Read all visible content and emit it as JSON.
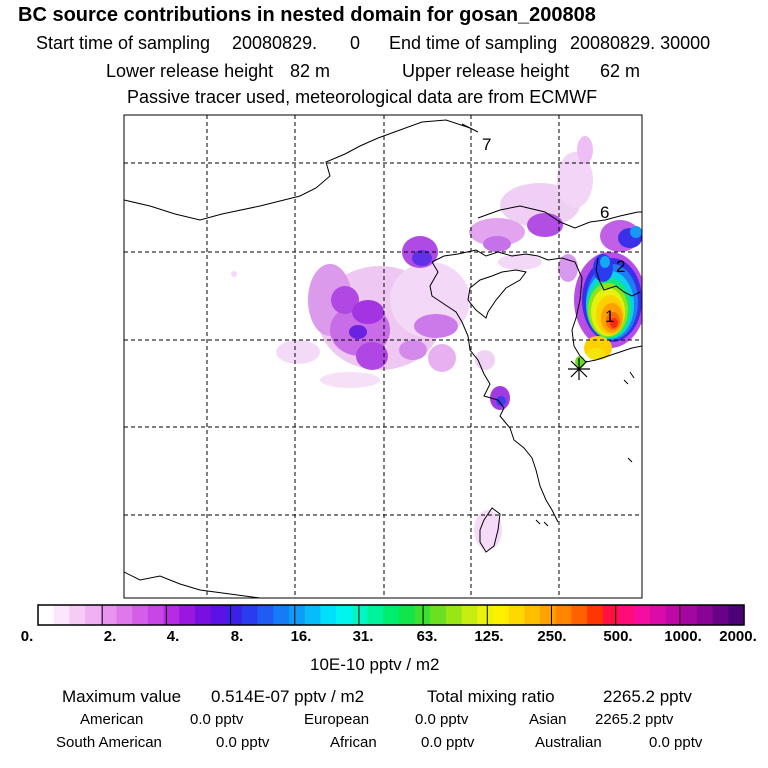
{
  "header": {
    "title": "BC  source contributions in nested domain for gosan_200808",
    "start_label": "Start time of sampling",
    "start_value": "20080829.",
    "start_hour": "0",
    "end_label": "End time of sampling",
    "end_value": "20080829. 30000",
    "lower_label": "Lower release height",
    "lower_value": "82 m",
    "upper_label": "Upper release height",
    "upper_value": "62 m",
    "note": "Passive tracer used, meteorological data are from ECMWF"
  },
  "map": {
    "region_labels": [
      "7",
      "6",
      "2",
      "1"
    ],
    "receptor": "gosan"
  },
  "colorbar": {
    "ticks": [
      "0.",
      "2.",
      "4.",
      "8.",
      "16.",
      "31.",
      "63.",
      "125.",
      "250.",
      "500.",
      "1000.",
      "2000."
    ],
    "units": "10E-10 pptv / m2",
    "colors": [
      "#ffffff",
      "#fbe6fb",
      "#f6ccf7",
      "#f0b0f3",
      "#e994ef",
      "#e078ec",
      "#d55ee9",
      "#c845e6",
      "#b62ce3",
      "#9b17e0",
      "#7a10e0",
      "#5c12e4",
      "#3c20ea",
      "#2a3cf0",
      "#1f5cf4",
      "#147cf6",
      "#0d9cf8",
      "#08bcf9",
      "#00dffa",
      "#00f5ee",
      "#00f7c4",
      "#00f39a",
      "#00ee70",
      "#10e64a",
      "#3be030",
      "#6ae020",
      "#98e615",
      "#c6ee10",
      "#e9f30c",
      "#fff000",
      "#ffd800",
      "#ffbe00",
      "#ffa200",
      "#ff8400",
      "#ff6000",
      "#ff3600",
      "#ff1040",
      "#ff0c78",
      "#f50ca0",
      "#dc0aa8",
      "#c008a8",
      "#a406a0",
      "#880496",
      "#6a0288",
      "#4e0078"
    ]
  },
  "stats": {
    "max_label": "Maximum value",
    "max_value": "0.514E-07 pptv / m2",
    "total_label": "Total mixing ratio",
    "total_value": "2265.2 pptv",
    "american_label": "American",
    "american_value": "0.0 pptv",
    "european_label": "European",
    "european_value": "0.0 pptv",
    "asian_label": "Asian",
    "asian_value": "2265.2 pptv",
    "south_american_label": "South American",
    "south_american_value": "0.0 pptv",
    "african_label": "African",
    "african_value": "0.0 pptv",
    "australian_label": "Australian",
    "australian_value": "0.0 pptv"
  }
}
